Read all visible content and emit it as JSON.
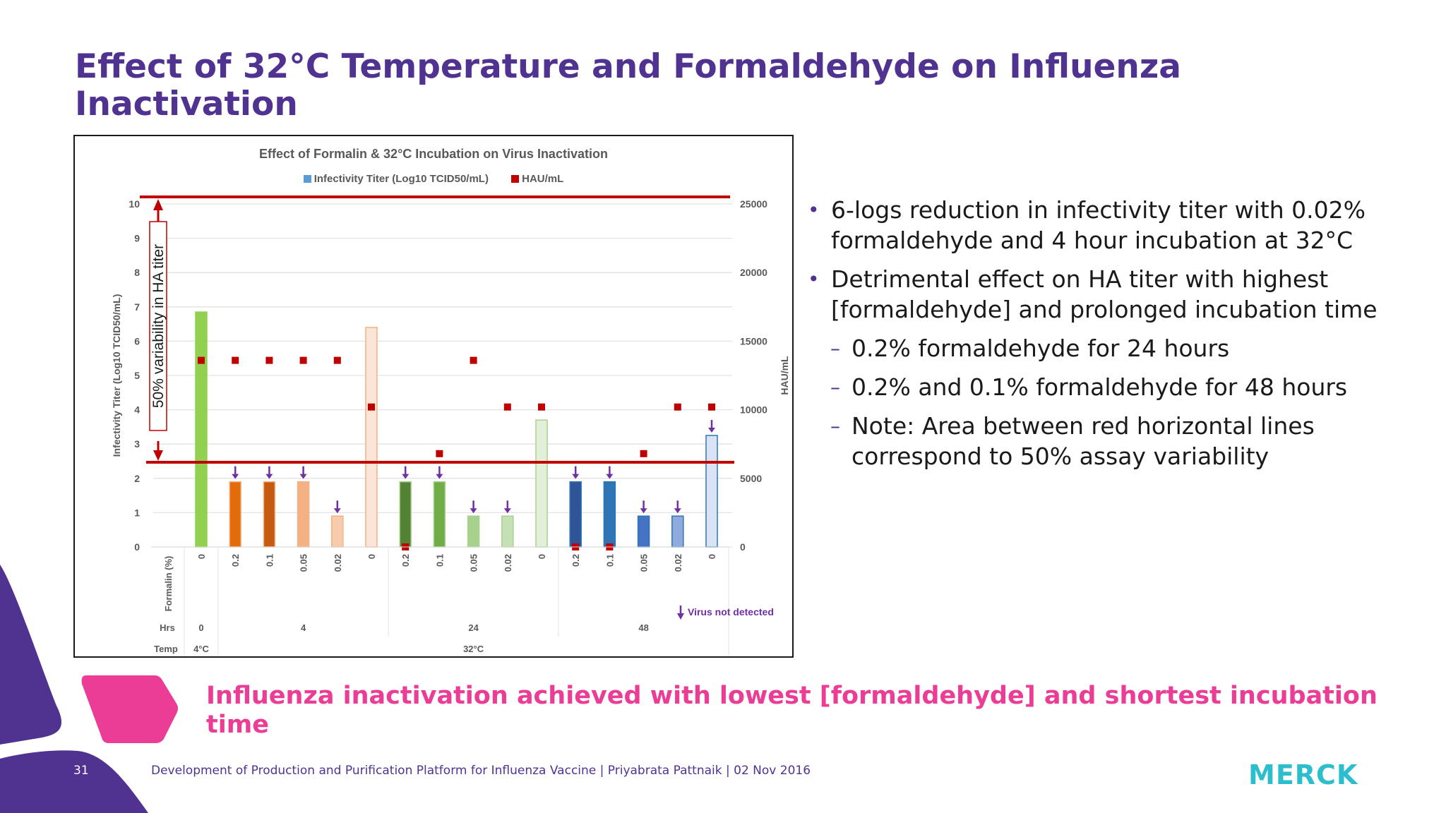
{
  "slide": {
    "title": "Effect of 32°C Temperature and Formaldehyde on Influenza Inactivation",
    "callout": "Influenza inactivation achieved with lowest [formaldehyde] and shortest incubation time",
    "page_number": "31",
    "footer": "Development of Production and Purification Platform for Influenza Vaccine | Priyabrata Pattnaik | 02 Nov 2016",
    "logo": "MERCK",
    "colors": {
      "title": "#503291",
      "callout": "#eb3c96",
      "logo": "#2dbecd",
      "decor_purple": "#503291",
      "decor_pink": "#eb3c96"
    }
  },
  "bullets": [
    {
      "level": 1,
      "text": "6-logs reduction in infectivity titer with 0.02% formaldehyde and 4 hour incubation at 32°C"
    },
    {
      "level": 1,
      "text": "Detrimental effect on HA titer with highest [formaldehyde] and prolonged incubation time"
    },
    {
      "level": 2,
      "text": "0.2% formaldehyde for 24 hours"
    },
    {
      "level": 2,
      "text": "0.2% and 0.1% formaldehyde for 48 hours"
    },
    {
      "level": 2,
      "text": "Note:  Area between red horizontal lines correspond to 50% assay variability"
    }
  ],
  "chart_data": {
    "type": "bar",
    "title": "Effect of Formalin & 32°C Incubation on Virus Inactivation",
    "legend": [
      "Infectivity Titer (Log10 TCID50/mL)",
      "HAU/mL"
    ],
    "legend_position": "top",
    "ylabel": "Infectivity Titer (Log10 TCID50/mL)",
    "y2label": "HAU/mL",
    "ylim": [
      0,
      10
    ],
    "y2lim": [
      0,
      25000
    ],
    "yticks": [
      0,
      1,
      2,
      3,
      4,
      5,
      6,
      7,
      8,
      9,
      10
    ],
    "y2ticks": [
      0,
      5000,
      10000,
      15000,
      20000,
      25000
    ],
    "grid": true,
    "x_rows": {
      "formalin_label": "Formalin (%)",
      "hrs_label": "Hrs",
      "temp_label": "Temp"
    },
    "categories": [
      "0",
      "0.2",
      "0.1",
      "0.05",
      "0.02",
      "0",
      "0.2",
      "0.1",
      "0.05",
      "0.02",
      "0",
      "0.2",
      "0.1",
      "0.05",
      "0.02",
      "0"
    ],
    "hours_groups": [
      {
        "label": "0",
        "span": 1
      },
      {
        "label": "4",
        "span": 5
      },
      {
        "label": "24",
        "span": 5
      },
      {
        "label": "48",
        "span": 5
      }
    ],
    "temp_groups": [
      {
        "label": "4°C",
        "span": 1
      },
      {
        "label": "32°C",
        "span": 15
      }
    ],
    "series": [
      {
        "name": "Infectivity Titer (Log10 TCID50/mL)",
        "type": "bar",
        "axis": "left",
        "values": [
          6.85,
          1.9,
          1.9,
          1.9,
          0.9,
          6.4,
          1.9,
          1.9,
          0.9,
          0.9,
          3.7,
          1.9,
          1.9,
          0.9,
          0.9,
          3.25
        ],
        "virus_not_detected": [
          false,
          true,
          true,
          true,
          true,
          false,
          true,
          true,
          true,
          true,
          false,
          true,
          true,
          true,
          true,
          true
        ]
      },
      {
        "name": "HAU/mL",
        "type": "scatter",
        "axis": "right",
        "values": [
          13600,
          13600,
          13600,
          13600,
          13600,
          10200,
          0,
          6800,
          13600,
          10200,
          10200,
          0,
          0,
          6800,
          10200,
          10200
        ]
      }
    ],
    "bar_colors": [
      "#92d050",
      "#e36c0a",
      "#c55a11",
      "#f4b183",
      "#f8cbad",
      "#fbe5d6",
      "#548235",
      "#70ad47",
      "#a9d18e",
      "#c5e0b4",
      "#e2f0d9",
      "#2f5597",
      "#2e75b6",
      "#4472c4",
      "#8faadc",
      "#dae3f3"
    ],
    "hau_marker_color": "#c00000",
    "annotations": {
      "variability_box": "50% variability in HA titer",
      "not_detected_legend": "Virus not detected",
      "upper_line_y": 10.25,
      "lower_line_y": 2.5,
      "arrow_color": "#7030a0",
      "line_color": "#c00000"
    }
  }
}
